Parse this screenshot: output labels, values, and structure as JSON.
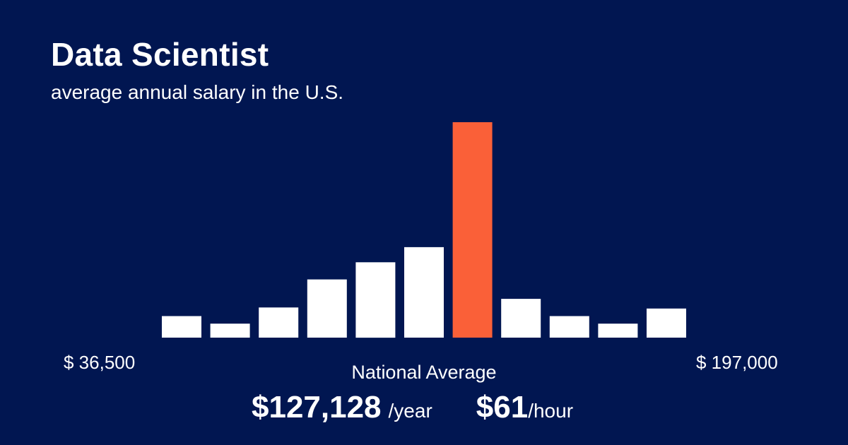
{
  "header": {
    "title": "Data Scientist",
    "subtitle": "average annual salary in the U.S."
  },
  "colors": {
    "background": "#011651",
    "bar": "#ffffff",
    "highlight": "#fa6038"
  },
  "chart_data": {
    "type": "bar",
    "title": "Data Scientist",
    "subtitle": "average annual salary in the U.S.",
    "x_range_labels": [
      "$ 36,500",
      "$ 197,000"
    ],
    "values": [
      10,
      6.5,
      14,
      27,
      35,
      42,
      100,
      18,
      10,
      6.5,
      13.5
    ],
    "highlight_index": 6,
    "ylim": [
      0,
      100
    ],
    "grid": false,
    "legend": "none"
  },
  "summary": {
    "label": "National Average",
    "annual_value": "$127,128",
    "annual_unit": "/year",
    "hourly_value": "$61",
    "hourly_unit": "/hour"
  }
}
